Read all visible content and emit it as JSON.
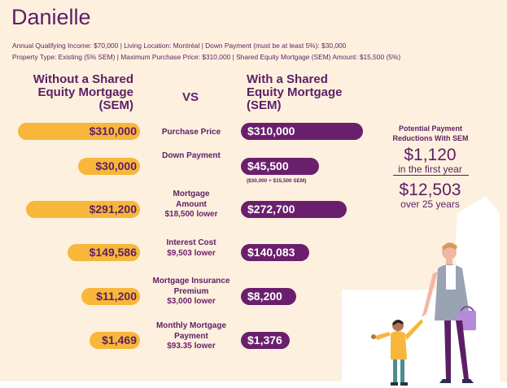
{
  "title": "Danielle",
  "info": {
    "line1": "Annual Qualifying Income: $70,000  |  Living Location: Montréal  |  Down Payment (must be at least 5%): $30,000",
    "line2": "Property Type: Existing (5% SEM)  |  Maximum Purchase Price: $310,000  |  Shared Equity Mortgage (SEM) Amount: $15,500 (5%)"
  },
  "headers": {
    "left": "Without a Shared Equity Mortgage (SEM)",
    "vs": "VS",
    "right": "With a Shared Equity Mortgage (SEM)"
  },
  "rows": [
    {
      "label": "Purchase Price",
      "diff": "",
      "left": "$310,000",
      "right": "$310,000"
    },
    {
      "label": "Down Payment",
      "diff": "",
      "left": "$30,000",
      "right": "$45,500",
      "note": "($30,000 + $15,500 SEM)"
    },
    {
      "label": "Mortgage Amount",
      "diff": "$18,500 lower",
      "left": "$291,200",
      "right": "$272,700"
    },
    {
      "label": "Interest Cost",
      "diff": "$9,503 lower",
      "left": "$149,586",
      "right": "$140,083"
    },
    {
      "label": "Mortgage Insurance Premium",
      "diff": "$3,000 lower",
      "left": "$11,200",
      "right": "$8,200"
    },
    {
      "label": "Monthly Mortgage Payment",
      "diff": "$93.35 lower",
      "left": "$1,469",
      "right": "$1,376"
    }
  ],
  "side": {
    "title": "Potential Payment Reductions With SEM",
    "amount1": "$1,120",
    "period1": "in the first year",
    "amount2": "$12,503",
    "period2": "over 25 years"
  },
  "colors": {
    "background": "#fdf0de",
    "purple": "#6a1f6c",
    "yellow": "#f8b73b",
    "text": "#5c1f66"
  }
}
